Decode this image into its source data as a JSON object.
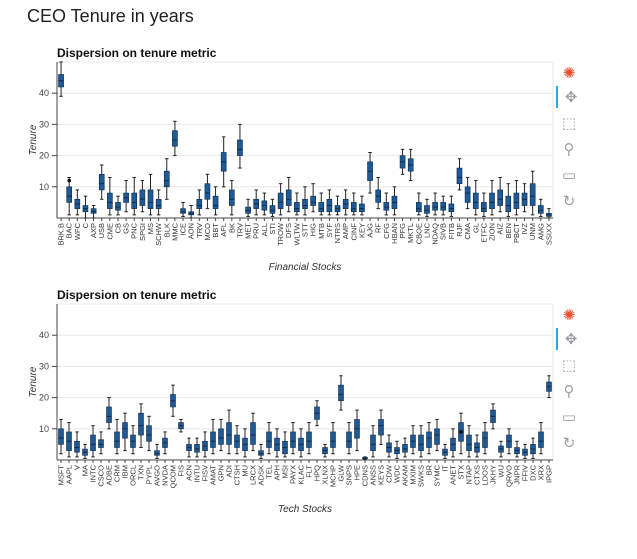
{
  "page": {
    "title": "CEO Tenure in years"
  },
  "toolbar_icons": [
    "bokeh-logo-icon",
    "pan-icon",
    "box-zoom-icon",
    "wheel-zoom-icon",
    "save-icon",
    "reset-icon"
  ],
  "colors": {
    "box_fill": "#1f5a96",
    "box_stroke": "#0d2a4a",
    "whisker": "#222222",
    "grid": "#e8e8e8",
    "toolbar_active": "#26aae1"
  },
  "chart_data": [
    {
      "type": "box",
      "title": "Dispersion on tenure metric",
      "xlabel": "Financial Stocks",
      "ylabel": "Tenure",
      "ylim": [
        0,
        50
      ],
      "yticks": [
        10,
        20,
        30,
        40
      ],
      "categories": [
        "BRK.B",
        "BAC",
        "WFC",
        "C",
        "AXP",
        "USB",
        "CME",
        "CB",
        "GS",
        "PNC",
        "SPGI",
        "MS",
        "SCHW",
        "BLK",
        "MMC",
        "ICE",
        "AON",
        "TRV",
        "MCO",
        "BBT",
        "AFL",
        "BK",
        "TRV",
        "MET",
        "PRU",
        "ALL",
        "STI",
        "TROW",
        "DFS",
        "WLTW",
        "STT",
        "HIG",
        "MTB",
        "SYF",
        "NTRS",
        "AMP",
        "CINF",
        "KEY",
        "AJG",
        "RF",
        "CFG",
        "HBAN",
        "PFG",
        "MKTL",
        "CBOE",
        "LNC",
        "NDAQ",
        "SIVB",
        "FITB",
        "RJF",
        "CMA",
        "GL",
        "ETFC",
        "ZION",
        "AIZ",
        "BEN",
        "PBCT",
        "IVZ",
        "UNM",
        "AMG",
        "SSIXX"
      ],
      "boxes": [
        [
          39,
          42,
          44,
          46,
          50
        ],
        [
          1,
          5,
          7,
          10,
          13
        ],
        [
          1,
          3,
          4.5,
          6,
          9
        ],
        [
          0,
          2,
          3,
          4,
          7
        ],
        [
          0,
          1.5,
          2,
          3,
          4
        ],
        [
          6,
          9,
          11,
          14,
          17
        ],
        [
          1,
          3,
          5,
          8,
          13
        ],
        [
          1,
          2.5,
          3.5,
          5,
          7
        ],
        [
          2,
          5,
          6.5,
          8,
          12
        ],
        [
          1,
          3,
          5,
          8,
          13
        ],
        [
          2,
          4,
          6,
          9,
          12
        ],
        [
          1,
          3,
          5,
          9,
          14
        ],
        [
          1,
          3,
          4,
          6,
          9
        ],
        [
          6,
          10,
          12,
          15,
          19
        ],
        [
          20,
          23,
          25,
          28,
          31
        ],
        [
          0.5,
          1.5,
          2,
          3,
          5
        ],
        [
          0,
          1,
          1.5,
          2,
          4
        ],
        [
          1,
          3,
          4,
          6,
          9
        ],
        [
          3,
          6,
          8,
          11,
          14
        ],
        [
          1,
          3,
          4,
          7,
          10
        ],
        [
          10,
          15,
          18,
          21,
          26
        ],
        [
          1,
          4,
          6,
          9,
          12
        ],
        [
          16,
          20,
          22,
          25,
          30
        ],
        [
          0.5,
          1.5,
          2.5,
          3.5,
          6
        ],
        [
          1,
          3,
          4.5,
          6,
          9
        ],
        [
          1,
          2.5,
          4,
          5.5,
          8
        ],
        [
          0.5,
          1.5,
          2.5,
          4,
          6
        ],
        [
          1,
          3,
          5,
          8,
          11
        ],
        [
          2,
          4,
          6,
          9,
          13
        ],
        [
          1,
          2,
          3,
          5,
          8
        ],
        [
          1,
          3,
          4,
          6,
          10
        ],
        [
          2,
          4,
          5,
          7,
          11
        ],
        [
          1,
          2,
          3,
          5,
          8
        ],
        [
          1,
          2,
          4,
          6,
          9
        ],
        [
          1,
          2,
          3,
          4,
          7
        ],
        [
          1,
          3,
          4.5,
          6,
          9
        ],
        [
          1,
          2,
          3,
          5,
          8
        ],
        [
          1,
          2,
          3,
          4.5,
          7
        ],
        [
          8,
          12,
          15,
          18,
          21
        ],
        [
          3,
          5,
          7,
          9,
          13
        ],
        [
          1,
          2.5,
          3.5,
          5,
          8
        ],
        [
          1,
          3,
          5,
          7,
          10
        ],
        [
          14,
          16,
          18,
          20,
          22
        ],
        [
          12,
          15,
          17,
          19,
          22
        ],
        [
          1,
          2,
          3,
          5,
          8
        ],
        [
          0.5,
          1.5,
          2.5,
          4,
          6
        ],
        [
          1,
          2.5,
          3.5,
          5,
          8
        ],
        [
          1,
          2.5,
          3.5,
          5,
          7
        ],
        [
          0.5,
          2,
          3,
          4.5,
          7
        ],
        [
          9,
          11,
          13,
          16,
          19
        ],
        [
          3,
          5,
          8,
          10,
          13
        ],
        [
          1,
          3,
          5,
          8,
          12
        ],
        [
          0.5,
          2,
          3,
          5,
          8
        ],
        [
          1,
          3,
          5,
          8,
          12
        ],
        [
          2,
          4,
          6,
          9,
          13
        ],
        [
          0.5,
          2,
          4,
          7,
          11
        ],
        [
          1,
          3,
          5,
          8,
          12
        ],
        [
          2,
          4,
          6,
          8,
          11
        ],
        [
          1,
          4,
          7,
          11,
          15
        ],
        [
          0.5,
          1.5,
          2.5,
          4,
          6
        ],
        [
          0,
          0.5,
          1,
          1.5,
          3
        ]
      ],
      "outliers": [
        [
          1,
          12
        ]
      ]
    },
    {
      "type": "box",
      "title": "Dispersion on tenure metric",
      "xlabel": "Tech Stocks",
      "ylabel": "Tenure",
      "ylim": [
        0,
        50
      ],
      "yticks": [
        10,
        20,
        30,
        40
      ],
      "categories": [
        "MSFT",
        "AAPL",
        "V",
        "MA",
        "INTC",
        "CSCO",
        "ADBE",
        "CRM",
        "IBM",
        "ORCL",
        "TXN",
        "PYPL",
        "AVGO",
        "NVDA",
        "QCOM",
        "FIS",
        "ACN",
        "INTU",
        "FISV",
        "AMAT",
        "GPN",
        "ADI",
        "CTSH",
        "MU",
        "LRCX",
        "ADSK",
        "TEL",
        "APH",
        "MSI",
        "PAYX",
        "KLAC",
        "FLT",
        "HPQ",
        "XLNX",
        "MCHP",
        "GLW",
        "SNPS",
        "HPE",
        "CDNS",
        "ANSS",
        "KEYS",
        "CDW",
        "WDC",
        "AKAM",
        "MXIM",
        "SWKS",
        "BR",
        "SYMC",
        "IT",
        "ANET",
        "STX",
        "NTAP",
        "CTXS",
        "LDOS",
        "JKHY",
        "WU",
        "QRVO",
        "JNPR",
        "FFIV",
        "DXC",
        "XRX",
        "IPGP"
      ],
      "boxes": [
        [
          2,
          5,
          7,
          10,
          13
        ],
        [
          1,
          3,
          6,
          9,
          12
        ],
        [
          1,
          2.5,
          4,
          6,
          9
        ],
        [
          0.5,
          1.5,
          2.5,
          3.5,
          5
        ],
        [
          1,
          3,
          5,
          8,
          11
        ],
        [
          2,
          4,
          5,
          6.5,
          9
        ],
        [
          10,
          12,
          14,
          17,
          20
        ],
        [
          2,
          4,
          6,
          9,
          13
        ],
        [
          3,
          7,
          10,
          12,
          15
        ],
        [
          2,
          4,
          6,
          8,
          11
        ],
        [
          4,
          8,
          11,
          15,
          18
        ],
        [
          3,
          6,
          8,
          11,
          14
        ],
        [
          0.5,
          1.5,
          2,
          3,
          5
        ],
        [
          2,
          4,
          5.5,
          7,
          9
        ],
        [
          14,
          17,
          19,
          21,
          24
        ],
        [
          9,
          10,
          11,
          12,
          13
        ],
        [
          1,
          3,
          4,
          5,
          7
        ],
        [
          1,
          2.5,
          3.5,
          5,
          7
        ],
        [
          1,
          3,
          4.5,
          6,
          9
        ],
        [
          2,
          4,
          6,
          9,
          13
        ],
        [
          3,
          5,
          7,
          10,
          13
        ],
        [
          2,
          5,
          8,
          12,
          16
        ],
        [
          2,
          4,
          6,
          8,
          11
        ],
        [
          1,
          3,
          5,
          7,
          10
        ],
        [
          3,
          5,
          8,
          12,
          15
        ],
        [
          0.5,
          1.5,
          2,
          3,
          5
        ],
        [
          2,
          4,
          6,
          9,
          12
        ],
        [
          1,
          3,
          5,
          7,
          10
        ],
        [
          1,
          2,
          4,
          6,
          9
        ],
        [
          2,
          4,
          6,
          9,
          12
        ],
        [
          1,
          3,
          5,
          7,
          10
        ],
        [
          2,
          4,
          6,
          9,
          12
        ],
        [
          11,
          13,
          15,
          17,
          19
        ],
        [
          1,
          2,
          3,
          4,
          5
        ],
        [
          2,
          4,
          6,
          9,
          12
        ],
        [
          16,
          19,
          21,
          24,
          27
        ],
        [
          2,
          4,
          6,
          9,
          12
        ],
        [
          3,
          7,
          10,
          13,
          16
        ],
        [
          0.2,
          0.4,
          0.6,
          0.8,
          1
        ],
        [
          1,
          3,
          5,
          8,
          11
        ],
        [
          5,
          8,
          11,
          13,
          16
        ],
        [
          1,
          2.5,
          4,
          5.5,
          8
        ],
        [
          0.5,
          2,
          3,
          4,
          6
        ],
        [
          1,
          2.5,
          3.5,
          5,
          7
        ],
        [
          2,
          4,
          6,
          8,
          11
        ],
        [
          1,
          3,
          5,
          8,
          11
        ],
        [
          2,
          4,
          7,
          9,
          12
        ],
        [
          3,
          5,
          8,
          10,
          13
        ],
        [
          0.5,
          1.5,
          2.5,
          3.5,
          5
        ],
        [
          1,
          3,
          5,
          7,
          10
        ],
        [
          2,
          6,
          9,
          12,
          15
        ],
        [
          1,
          3,
          5,
          8,
          11
        ],
        [
          1,
          2.5,
          4,
          5.5,
          8
        ],
        [
          2,
          4,
          7,
          9,
          12
        ],
        [
          10,
          12,
          14,
          16,
          18
        ],
        [
          1,
          2.5,
          3.5,
          4.5,
          6
        ],
        [
          2,
          4,
          6,
          8,
          10
        ],
        [
          1,
          2,
          3,
          4,
          6
        ],
        [
          0.5,
          1.5,
          2.5,
          3.5,
          5
        ],
        [
          0.5,
          2,
          3.5,
          5,
          7
        ],
        [
          2,
          4,
          6,
          9,
          12
        ],
        [
          20,
          22,
          23.5,
          25,
          27
        ]
      ],
      "outliers": [
        [
          50,
          9
        ]
      ]
    }
  ]
}
